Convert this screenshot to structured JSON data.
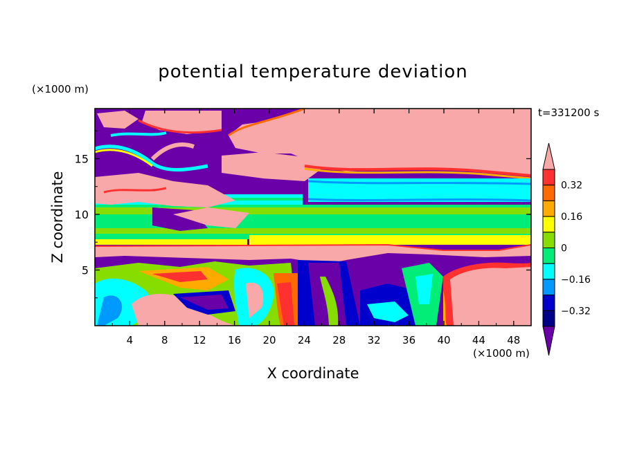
{
  "chart_data": {
    "type": "heatmap",
    "title": "potential temperature deviation",
    "xlabel": "X coordinate",
    "ylabel": "Z coordinate",
    "x_unit": "(×1000 m)",
    "y_unit": "(×1000 m)",
    "time_label": "t=331200 s",
    "xlim": [
      0,
      50
    ],
    "ylim": [
      0,
      19.5
    ],
    "x_ticks": [
      "4",
      "8",
      "12",
      "16",
      "20",
      "24",
      "28",
      "32",
      "36",
      "40",
      "44",
      "48"
    ],
    "y_ticks": [
      "5",
      "10",
      "15"
    ],
    "colorbar": {
      "levels": [
        -0.4,
        -0.32,
        -0.24,
        -0.16,
        -0.08,
        0,
        0.08,
        0.16,
        0.24,
        0.32,
        0.4
      ],
      "labels": [
        "0.32",
        "0.16",
        "0",
        "−0.16",
        "−0.32"
      ],
      "colors_high_to_low": [
        "#f8a8a8",
        "#ff3030",
        "#ff6a00",
        "#ffaa00",
        "#ffff00",
        "#88dd00",
        "#00ee77",
        "#00ffff",
        "#0099ff",
        "#0000cc",
        "#000088",
        "#6a00a8"
      ],
      "extend": "both"
    },
    "layers": [
      {
        "z_range": [
          12.8,
          19.5
        ],
        "x_range": [
          0,
          22
        ],
        "value": "<-0.4",
        "color": "#6a00a8"
      },
      {
        "z_range": [
          13.5,
          19.5
        ],
        "x_range": [
          22,
          50
        ],
        "value": ">0.4",
        "color": "#f8a8a8"
      },
      {
        "z_range": [
          10.5,
          13.5
        ],
        "x_range": [
          24,
          50
        ],
        "value": "-0.24 to -0.08",
        "color": "#00ffff"
      },
      {
        "z_range": [
          7.5,
          10.5
        ],
        "x_range": [
          14,
          50
        ],
        "value": "0 to 0.08",
        "color": "#00ee77"
      },
      {
        "z_range": [
          6.5,
          7.5
        ],
        "x_range": [
          0,
          40
        ],
        "value": ">0.4",
        "color": "#f8a8a8"
      },
      {
        "z_range": [
          0,
          6.5
        ],
        "x_range": [
          22,
          40
        ],
        "value": "<-0.4",
        "color": "#6a00a8"
      },
      {
        "z_range": [
          0,
          6
        ],
        "x_range": [
          40,
          50
        ],
        "value": ">0.4",
        "color": "#f8a8a8"
      }
    ]
  }
}
